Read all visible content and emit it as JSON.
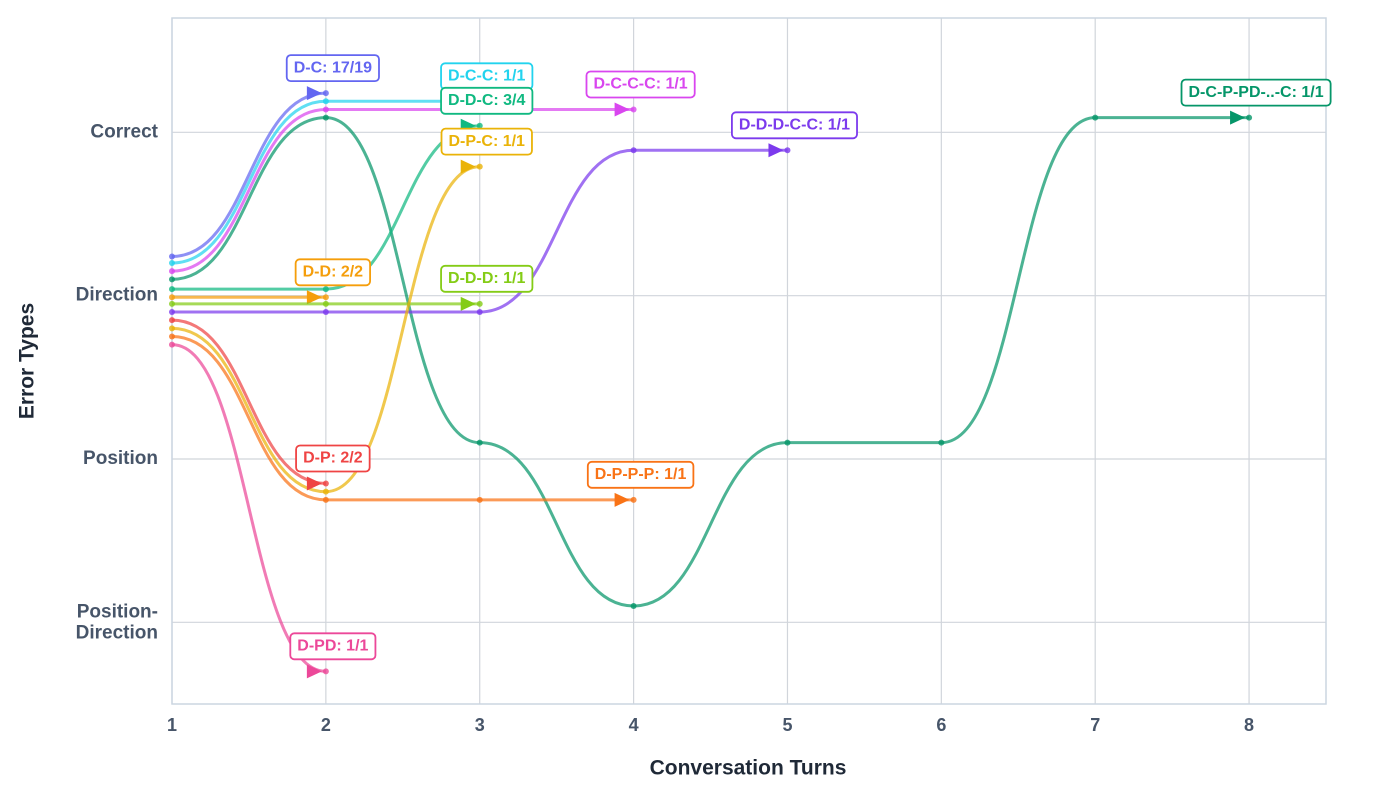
{
  "chart_data": {
    "type": "line",
    "x_label": "Conversation Turns",
    "y_label": "Error Types",
    "xlim": [
      1,
      8.5
    ],
    "xticks": [
      1,
      2,
      3,
      4,
      5,
      6,
      7,
      8
    ],
    "ylim": [
      -0.5,
      3.7
    ],
    "yticks": [
      {
        "value": 3,
        "label": "Correct"
      },
      {
        "value": 2,
        "label": "Direction"
      },
      {
        "value": 1,
        "label": "Position"
      },
      {
        "value": 0,
        "label": "Position-Direction"
      }
    ],
    "grid": true,
    "series": [
      {
        "name": "D-C: 17/19",
        "color": "#6366f1",
        "x": [
          1,
          2
        ],
        "values": [
          2.24,
          3.24
        ]
      },
      {
        "name": "D-C-C: 1/1",
        "color": "#22d3ee",
        "x": [
          1,
          2,
          3
        ],
        "values": [
          2.2,
          3.19,
          3.19
        ]
      },
      {
        "name": "D-C-C-C: 1/1",
        "color": "#d946ef",
        "x": [
          1,
          2,
          3,
          4
        ],
        "values": [
          2.15,
          3.14,
          3.14,
          3.14
        ]
      },
      {
        "name": "D-C-P-PD-..-C: 1/1",
        "color": "#059669",
        "x": [
          1,
          2,
          3,
          4,
          5,
          6,
          7,
          8
        ],
        "values": [
          2.1,
          3.09,
          1.1,
          0.1,
          1.1,
          1.1,
          3.09,
          3.09
        ]
      },
      {
        "name": "D-D-C: 3/4",
        "color": "#10b981",
        "x": [
          1,
          2,
          3
        ],
        "values": [
          2.04,
          2.04,
          3.04
        ]
      },
      {
        "name": "D-D: 2/2",
        "color": "#f59e0b",
        "x": [
          1,
          2
        ],
        "values": [
          1.99,
          1.99
        ]
      },
      {
        "name": "D-D-D: 1/1",
        "color": "#84cc16",
        "x": [
          1,
          2,
          3
        ],
        "values": [
          1.95,
          1.95,
          1.95
        ]
      },
      {
        "name": "D-D-D-C-C: 1/1",
        "color": "#7c3aed",
        "x": [
          1,
          2,
          3,
          4,
          5
        ],
        "values": [
          1.9,
          1.9,
          1.9,
          2.89,
          2.89
        ]
      },
      {
        "name": "D-P-C: 1/1",
        "color": "#eab308",
        "x": [
          1,
          2,
          3
        ],
        "values": [
          1.8,
          0.8,
          2.79
        ]
      },
      {
        "name": "D-P: 2/2",
        "color": "#ef4444",
        "x": [
          1,
          2
        ],
        "values": [
          1.85,
          0.85
        ]
      },
      {
        "name": "D-P-P-P: 1/1",
        "color": "#f97316",
        "x": [
          1,
          2,
          3,
          4
        ],
        "values": [
          1.75,
          0.75,
          0.75,
          0.75
        ]
      },
      {
        "name": "D-PD: 1/1",
        "color": "#ec4899",
        "x": [
          1,
          2
        ],
        "values": [
          1.7,
          -0.3
        ]
      }
    ]
  }
}
